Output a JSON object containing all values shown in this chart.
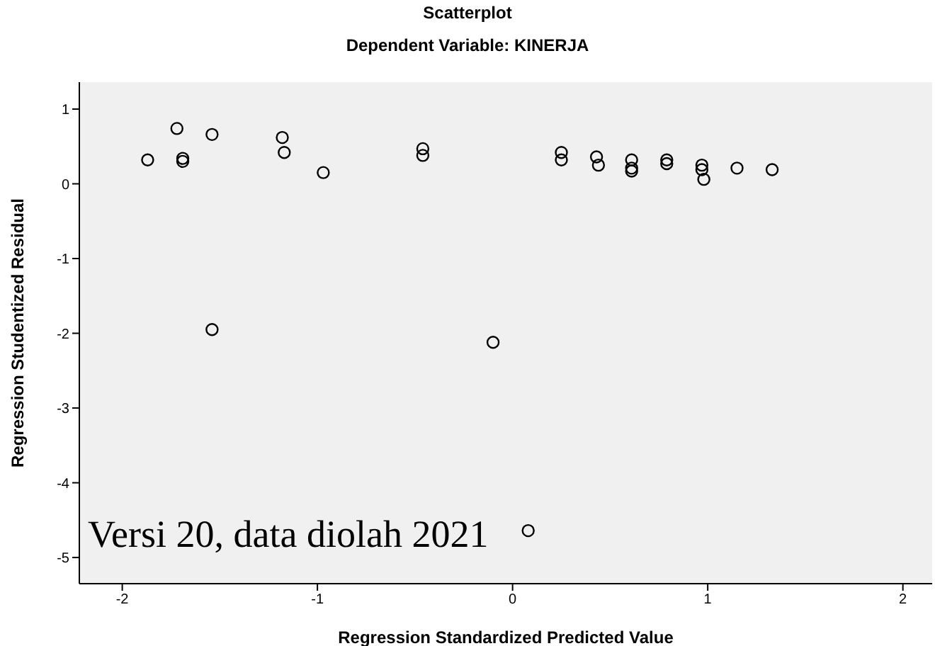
{
  "chart_data": {
    "type": "scatter",
    "title": "Scatterplot",
    "subtitle": "Dependent Variable: KINERJA",
    "xlabel": "Regression Standardized Predicted Value",
    "ylabel": "Regression Studentized Residual",
    "annotations": [
      "Versi 20, data diolah 2021"
    ],
    "x": [
      -1.87,
      -1.72,
      -1.69,
      -1.69,
      -1.54,
      -1.54,
      -1.18,
      -1.17,
      -0.97,
      -0.46,
      -0.46,
      -0.1,
      0.08,
      0.25,
      0.25,
      0.43,
      0.44,
      0.61,
      0.61,
      0.61,
      0.79,
      0.79,
      0.97,
      0.97,
      0.98,
      1.15,
      1.33
    ],
    "series": [
      {
        "color": "#000000",
        "values": [
          0.32,
          0.74,
          0.34,
          0.3,
          0.66,
          -1.95,
          0.62,
          0.42,
          0.15,
          0.47,
          0.38,
          -2.12,
          -4.64,
          0.42,
          0.32,
          0.36,
          0.25,
          0.32,
          0.21,
          0.17,
          0.32,
          0.27,
          0.25,
          0.19,
          0.06,
          0.21,
          0.19
        ]
      }
    ],
    "xlim": [
      -2.22,
      2.15
    ],
    "xticks": [
      -2,
      -1,
      0,
      1,
      2
    ],
    "ylim": [
      -5.35,
      1.36
    ],
    "yticks": [
      -5,
      -4,
      -3,
      -2,
      -1,
      0,
      1
    ],
    "grid": false,
    "legend": false,
    "marker": "circle"
  }
}
